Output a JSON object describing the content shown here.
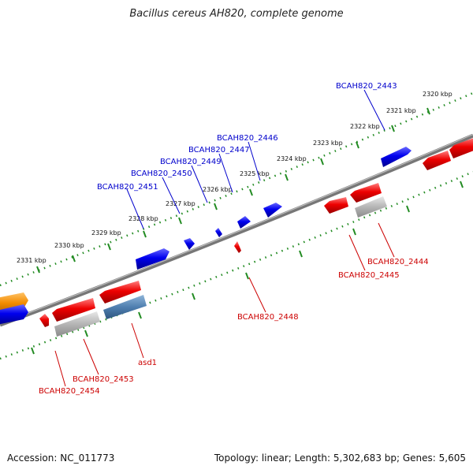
{
  "title": "Bacillus cereus AH820, complete genome",
  "footer": {
    "accession": "Accession: NC_011773",
    "summary": "Topology: linear; Length: 5,302,683 bp; Genes: 5,605"
  },
  "colors": {
    "forward_gene": "#0000ee",
    "reverse_gene": "#ee0000",
    "label_forward": "#0000cc",
    "label_reverse": "#cc0000",
    "backbone": "#777777",
    "ruler": "#228b22",
    "pseudo": "#b0b0b0",
    "rna": "#4f7fb0",
    "other": "#f28c00"
  },
  "ruler_labels": [
    {
      "text": "2320 kbp"
    },
    {
      "text": "2321 kbp"
    },
    {
      "text": "2322 kbp"
    },
    {
      "text": "2323 kbp"
    },
    {
      "text": "2324 kbp"
    },
    {
      "text": "2325 kbp"
    },
    {
      "text": "2326 kbp"
    },
    {
      "text": "2327 kbp"
    },
    {
      "text": "2328 kbp"
    },
    {
      "text": "2329 kbp"
    },
    {
      "text": "2330 kbp"
    },
    {
      "text": "2331 kbp"
    }
  ],
  "gene_labels": [
    {
      "text": "BCAH820_2443",
      "strand": "forward"
    },
    {
      "text": "BCAH820_2446",
      "strand": "forward"
    },
    {
      "text": "BCAH820_2447",
      "strand": "forward"
    },
    {
      "text": "BCAH820_2449",
      "strand": "forward"
    },
    {
      "text": "BCAH820_2450",
      "strand": "forward"
    },
    {
      "text": "BCAH820_2451",
      "strand": "forward"
    },
    {
      "text": "BCAH820_2444",
      "strand": "reverse"
    },
    {
      "text": "BCAH820_2445",
      "strand": "reverse"
    },
    {
      "text": "BCAH820_2448",
      "strand": "reverse"
    },
    {
      "text": "asd1",
      "strand": "reverse"
    },
    {
      "text": "BCAH820_2453",
      "strand": "reverse"
    },
    {
      "text": "BCAH820_2454",
      "strand": "reverse"
    }
  ]
}
